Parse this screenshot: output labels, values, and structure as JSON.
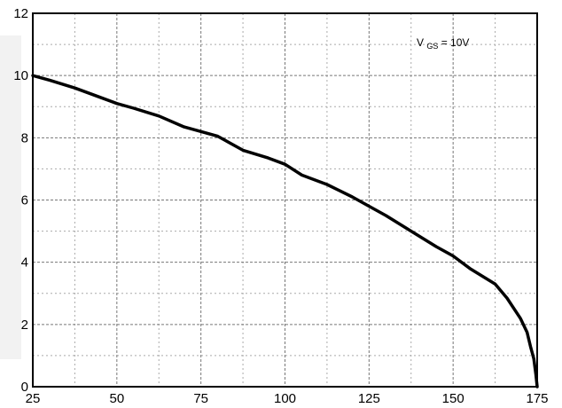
{
  "chart_data": {
    "type": "line",
    "title": "",
    "xlabel": "",
    "ylabel": "",
    "xlim": [
      25,
      175
    ],
    "ylim": [
      0,
      12
    ],
    "x_ticks": [
      25,
      50,
      75,
      100,
      125,
      150,
      175
    ],
    "y_ticks": [
      0,
      2,
      4,
      6,
      8,
      10,
      12
    ],
    "x_tick_labels": [
      "25",
      "50",
      "75",
      "100",
      "125",
      "150",
      "175"
    ],
    "y_tick_labels": [
      "0",
      "2",
      "4",
      "6",
      "8",
      "10",
      "12"
    ],
    "grid": true,
    "legend": "none",
    "annotation": {
      "main": "V",
      "subscript": "GS",
      "rest": "= 10V"
    },
    "series": [
      {
        "color": "#000000",
        "points": [
          [
            25,
            10.0
          ],
          [
            30,
            9.85
          ],
          [
            37.5,
            9.6
          ],
          [
            45,
            9.3
          ],
          [
            50,
            9.1
          ],
          [
            55,
            8.95
          ],
          [
            62.5,
            8.7
          ],
          [
            70,
            8.35
          ],
          [
            75,
            8.2
          ],
          [
            80,
            8.05
          ],
          [
            87.5,
            7.6
          ],
          [
            95,
            7.35
          ],
          [
            100,
            7.15
          ],
          [
            105,
            6.8
          ],
          [
            112.5,
            6.5
          ],
          [
            120,
            6.1
          ],
          [
            125,
            5.8
          ],
          [
            130,
            5.5
          ],
          [
            137.5,
            5.0
          ],
          [
            145,
            4.5
          ],
          [
            150,
            4.2
          ],
          [
            155,
            3.8
          ],
          [
            162.5,
            3.3
          ],
          [
            166,
            2.85
          ],
          [
            170,
            2.2
          ],
          [
            172,
            1.75
          ],
          [
            173,
            1.3
          ],
          [
            174,
            0.9
          ],
          [
            174.6,
            0.4
          ],
          [
            175,
            0.0
          ]
        ]
      }
    ]
  }
}
